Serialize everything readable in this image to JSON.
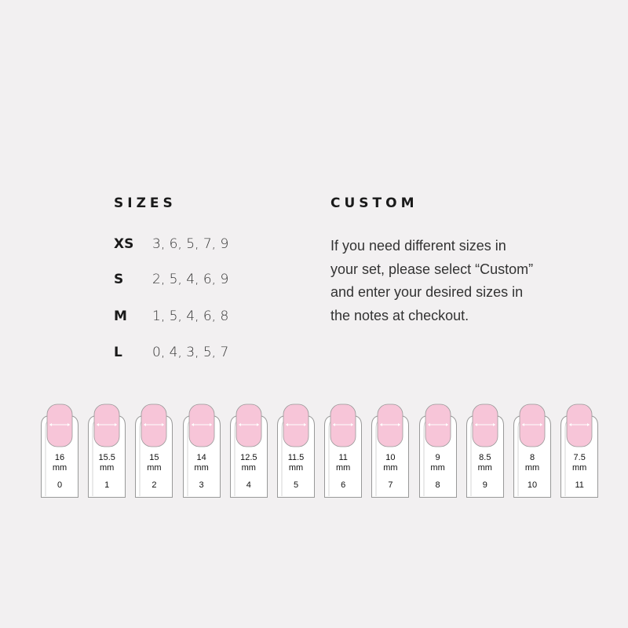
{
  "sizes": {
    "title": "SIZES",
    "rows": [
      {
        "label": "XS",
        "values": "3, 6, 5, 7, 9"
      },
      {
        "label": "S",
        "values": "2, 5, 4, 6, 9"
      },
      {
        "label": "M",
        "values": "1, 5, 4, 6, 8"
      },
      {
        "label": "L",
        "values": "0, 4, 3, 5, 7"
      }
    ]
  },
  "custom": {
    "title": "CUSTOM",
    "text": "If you need different sizes in your set, please select “Custom” and enter your desired sizes in the notes at checkout."
  },
  "nails": {
    "unit": "mm",
    "nail_color": "#f7c5d8",
    "items": [
      {
        "width": "16",
        "size": "0"
      },
      {
        "width": "15.5",
        "size": "1"
      },
      {
        "width": "15",
        "size": "2"
      },
      {
        "width": "14",
        "size": "3"
      },
      {
        "width": "12.5",
        "size": "4"
      },
      {
        "width": "11.5",
        "size": "5"
      },
      {
        "width": "11",
        "size": "6"
      },
      {
        "width": "10",
        "size": "7"
      },
      {
        "width": "9",
        "size": "8"
      },
      {
        "width": "8.5",
        "size": "9"
      },
      {
        "width": "8",
        "size": "10"
      },
      {
        "width": "7.5",
        "size": "11"
      }
    ]
  }
}
